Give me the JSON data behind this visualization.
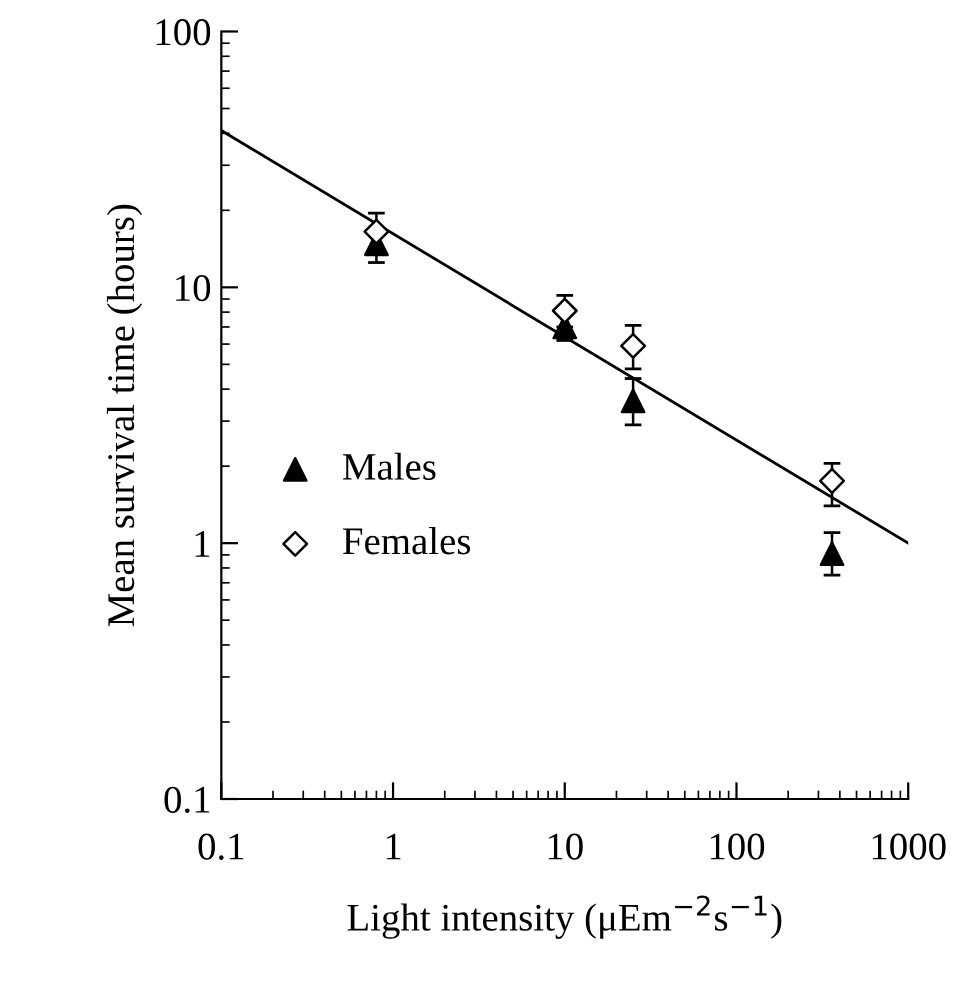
{
  "chart_data": {
    "type": "scatter",
    "xlabel": "Light intensity (μEm$^{−2}$s$^{−1}$)",
    "ylabel": "Mean survival time (hours)",
    "log": "xy",
    "xlim": [
      0.1,
      1000
    ],
    "ylim": [
      0.1,
      100
    ],
    "xticks": [
      0.1,
      1,
      10,
      100,
      1000
    ],
    "yticks": [
      0.1,
      1,
      10,
      100
    ],
    "grid": false,
    "legend": "left",
    "series": [
      {
        "name": "Males",
        "marker": "triangle",
        "color": "#000000",
        "x": [
          0.8,
          10,
          25,
          360
        ],
        "values": [
          14.8,
          7.0,
          3.6,
          0.91
        ],
        "errors": [
          [
            12.5,
            17
          ],
          [
            6.2,
            8
          ],
          [
            2.9,
            4.4
          ],
          [
            0.75,
            1.1
          ]
        ]
      },
      {
        "name": "Females",
        "marker": "diamond",
        "color": "#000000",
        "x": [
          0.8,
          10,
          25,
          360
        ],
        "values": [
          16.5,
          8.1,
          5.9,
          1.75
        ],
        "errors": [
          [
            16.5,
            19.5
          ],
          [
            7,
            9.3
          ],
          [
            4.8,
            7.1
          ],
          [
            1.4,
            2.05
          ]
        ]
      },
      {
        "type": "line",
        "color": "#000000",
        "x": [
          0.1,
          1000
        ],
        "values": [
          41,
          1.0
        ]
      }
    ]
  }
}
